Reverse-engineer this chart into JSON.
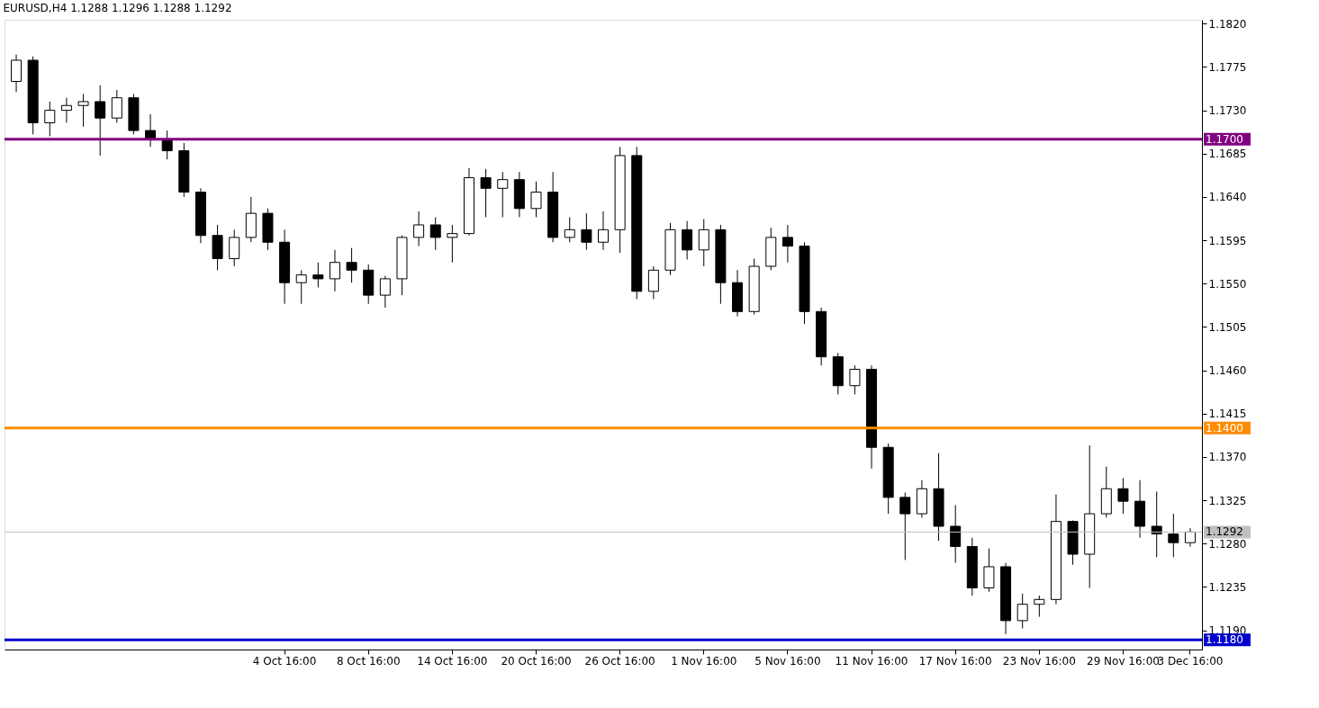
{
  "chart_data": {
    "type": "candlestick",
    "title": "EURUSD,H4  1.1288 1.1296 1.1288 1.1292",
    "categories": [
      null,
      null,
      null,
      null,
      null,
      null,
      null,
      null,
      null,
      null,
      null,
      null,
      null,
      null,
      null,
      null,
      "4 Oct 16:00",
      null,
      null,
      null,
      null,
      "8 Oct 16:00",
      null,
      null,
      null,
      null,
      "14 Oct 16:00",
      null,
      null,
      null,
      null,
      "20 Oct 16:00",
      null,
      null,
      null,
      null,
      "26 Oct 16:00",
      null,
      null,
      null,
      null,
      "1 Nov 16:00",
      null,
      null,
      null,
      null,
      "5 Nov 16:00",
      null,
      null,
      null,
      null,
      "11 Nov 16:00",
      null,
      null,
      null,
      null,
      "17 Nov 16:00",
      null,
      null,
      null,
      null,
      "23 Nov 16:00",
      null,
      null,
      null,
      null,
      "29 Nov 16:00",
      null,
      null,
      null,
      "3 Dec 16:00"
    ],
    "ohlc": [
      [
        1.176,
        1.1788,
        1.1749,
        1.1782
      ],
      [
        1.1782,
        1.1786,
        1.1705,
        1.1717
      ],
      [
        1.1717,
        1.1739,
        1.1703,
        1.173
      ],
      [
        1.173,
        1.1743,
        1.1717,
        1.1735
      ],
      [
        1.1735,
        1.1747,
        1.1713,
        1.1739
      ],
      [
        1.1739,
        1.1756,
        1.1683,
        1.1722
      ],
      [
        1.1722,
        1.1751,
        1.1717,
        1.1743
      ],
      [
        1.1743,
        1.1747,
        1.1705,
        1.1709
      ],
      [
        1.1709,
        1.1726,
        1.1692,
        1.17
      ],
      [
        1.17,
        1.1709,
        1.1679,
        1.1688
      ],
      [
        1.1688,
        1.1696,
        1.164,
        1.1645
      ],
      [
        1.1645,
        1.1649,
        1.1592,
        1.16
      ],
      [
        1.16,
        1.1611,
        1.1564,
        1.1576
      ],
      [
        1.1576,
        1.1606,
        1.1568,
        1.1598
      ],
      [
        1.1598,
        1.164,
        1.1593,
        1.1623
      ],
      [
        1.1623,
        1.1628,
        1.1585,
        1.1593
      ],
      [
        1.1593,
        1.1606,
        1.1529,
        1.1551
      ],
      [
        1.1551,
        1.1564,
        1.1529,
        1.1559
      ],
      [
        1.1559,
        1.1572,
        1.1546,
        1.1555
      ],
      [
        1.1555,
        1.1585,
        1.1542,
        1.1572
      ],
      [
        1.1572,
        1.1587,
        1.1551,
        1.1564
      ],
      [
        1.1564,
        1.157,
        1.1529,
        1.1538
      ],
      [
        1.1538,
        1.1558,
        1.1525,
        1.1555
      ],
      [
        1.1555,
        1.16,
        1.1538,
        1.1598
      ],
      [
        1.1598,
        1.1625,
        1.1589,
        1.1611
      ],
      [
        1.1611,
        1.1619,
        1.1585,
        1.1598
      ],
      [
        1.1598,
        1.1611,
        1.1572,
        1.1602
      ],
      [
        1.1602,
        1.167,
        1.16,
        1.166
      ],
      [
        1.166,
        1.1669,
        1.1619,
        1.1649
      ],
      [
        1.1649,
        1.1666,
        1.1619,
        1.1658
      ],
      [
        1.1658,
        1.1666,
        1.1619,
        1.1628
      ],
      [
        1.1628,
        1.1656,
        1.1619,
        1.1645
      ],
      [
        1.1645,
        1.1666,
        1.1593,
        1.1598
      ],
      [
        1.1598,
        1.1619,
        1.1593,
        1.1606
      ],
      [
        1.1606,
        1.1623,
        1.1585,
        1.1593
      ],
      [
        1.1593,
        1.1625,
        1.1585,
        1.1606
      ],
      [
        1.1606,
        1.1692,
        1.1582,
        1.1683
      ],
      [
        1.1683,
        1.1692,
        1.1534,
        1.1542
      ],
      [
        1.1542,
        1.1568,
        1.1534,
        1.1564
      ],
      [
        1.1564,
        1.1613,
        1.1559,
        1.1606
      ],
      [
        1.1606,
        1.1615,
        1.1575,
        1.1585
      ],
      [
        1.1585,
        1.1617,
        1.1568,
        1.1606
      ],
      [
        1.1606,
        1.1611,
        1.1529,
        1.1551
      ],
      [
        1.1551,
        1.1564,
        1.1516,
        1.1521
      ],
      [
        1.1521,
        1.1576,
        1.1518,
        1.1568
      ],
      [
        1.1568,
        1.1608,
        1.1564,
        1.1598
      ],
      [
        1.1598,
        1.1611,
        1.1572,
        1.1589
      ],
      [
        1.1589,
        1.1593,
        1.1508,
        1.1521
      ],
      [
        1.1521,
        1.1525,
        1.1465,
        1.1474
      ],
      [
        1.1474,
        1.1478,
        1.1435,
        1.1444
      ],
      [
        1.1444,
        1.1465,
        1.1435,
        1.1461
      ],
      [
        1.1461,
        1.1465,
        1.1358,
        1.138
      ],
      [
        1.138,
        1.1384,
        1.1311,
        1.1328
      ],
      [
        1.1328,
        1.1333,
        1.1263,
        1.1311
      ],
      [
        1.1311,
        1.1346,
        1.1307,
        1.1337
      ],
      [
        1.1337,
        1.1374,
        1.1283,
        1.1298
      ],
      [
        1.1298,
        1.132,
        1.126,
        1.1277
      ],
      [
        1.1277,
        1.1286,
        1.1226,
        1.1234
      ],
      [
        1.1234,
        1.1275,
        1.123,
        1.1256
      ],
      [
        1.1256,
        1.126,
        1.1186,
        1.12
      ],
      [
        1.12,
        1.1228,
        1.1192,
        1.1217
      ],
      [
        1.1217,
        1.1226,
        1.1204,
        1.1222
      ],
      [
        1.1222,
        1.1331,
        1.1217,
        1.1303
      ],
      [
        1.1303,
        1.1304,
        1.1258,
        1.1269
      ],
      [
        1.1269,
        1.1382,
        1.1234,
        1.1311
      ],
      [
        1.1311,
        1.136,
        1.1307,
        1.1337
      ],
      [
        1.1337,
        1.1348,
        1.1311,
        1.1324
      ],
      [
        1.1324,
        1.1346,
        1.1286,
        1.1298
      ],
      [
        1.1298,
        1.1334,
        1.1266,
        1.129
      ],
      [
        1.129,
        1.1311,
        1.1266,
        1.1281
      ],
      [
        1.1281,
        1.1296,
        1.1277,
        1.1292
      ]
    ],
    "ylim": [
      1.117,
      1.1824
    ],
    "yticks": [
      {
        "value": 1.119,
        "label": "1.1190"
      },
      1.1235,
      {
        "value": 1.128,
        "label": "1.1280"
      },
      1.1325,
      {
        "value": 1.137,
        "label": "1.1370"
      },
      1.1415,
      {
        "value": 1.146,
        "label": "1.1460"
      },
      1.1505,
      {
        "value": 1.155,
        "label": "1.1550"
      },
      1.1595,
      {
        "value": 1.164,
        "label": "1.1640"
      },
      1.1685,
      {
        "value": 1.173,
        "label": "1.1730"
      },
      1.1775,
      {
        "value": 1.182,
        "label": "1.1820"
      }
    ],
    "ref_lines": [
      {
        "axis": "y",
        "value": 1.17,
        "label": "1.1700",
        "color": "#800080"
      },
      {
        "axis": "y",
        "value": 1.14,
        "label": "1.1400",
        "color": "#ff8c00"
      },
      {
        "axis": "y",
        "value": 1.1292,
        "label": "1.1292",
        "color": "#c0c0c0"
      },
      {
        "axis": "y",
        "value": 1.118,
        "label": "1.1180",
        "color": "#0000cd"
      }
    ]
  }
}
